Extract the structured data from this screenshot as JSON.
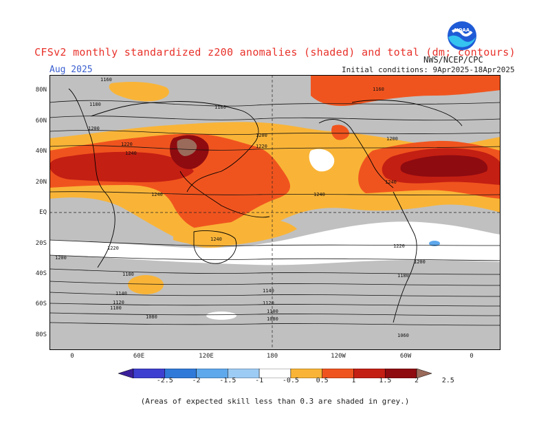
{
  "title": "CFSv2 monthly standardized z200 anomalies (shaded) and total (dm; contours)",
  "month": "Aug 2025",
  "org": "NWS/NCEP/CPC",
  "initial_conditions": "Initial conditions: 9Apr2025-18Apr2025",
  "logo_text": "NOAA",
  "footnote": "(Areas of expected skill less than 0.3 are shaded in grey.)",
  "latitude_labels": [
    "80N",
    "60N",
    "40N",
    "20N",
    "EQ",
    "20S",
    "40S",
    "60S",
    "80S"
  ],
  "longitude_labels": [
    "0",
    "60E",
    "120E",
    "180",
    "120W",
    "60W",
    "0"
  ],
  "colorbar": {
    "labels": [
      "-2.5",
      "-2",
      "-1.5",
      "-1",
      "-0.5",
      "0.5",
      "1",
      "1.5",
      "2",
      "2.5"
    ],
    "colors": [
      "#3a1f9a",
      "#3d3fd0",
      "#2f79d8",
      "#5ea8ec",
      "#9ccbf4",
      "#ffffff",
      "#f9b437",
      "#f0541e",
      "#c41f13",
      "#8e0b10",
      "#9a6a5a"
    ]
  },
  "contour_labels": [
    "1160",
    "1180",
    "1200",
    "1220",
    "1240",
    "1100",
    "1120",
    "1140",
    "1080",
    "1060"
  ],
  "colors": {
    "grey_skill_mask": "#c0c0c0",
    "orange": "#f9b437",
    "red_orange": "#f0541e",
    "dark_red": "#c41f13",
    "maroon": "#8e0b10",
    "brown": "#9a6a5a",
    "light_blue": "#5ea8ec"
  }
}
